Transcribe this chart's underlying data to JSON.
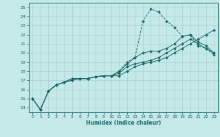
{
  "xlabel": "Humidex (Indice chaleur)",
  "xlim": [
    -0.5,
    23.5
  ],
  "ylim": [
    13.5,
    25.5
  ],
  "xticks": [
    0,
    1,
    2,
    3,
    4,
    5,
    6,
    7,
    8,
    9,
    10,
    11,
    12,
    13,
    14,
    15,
    16,
    17,
    18,
    19,
    20,
    21,
    22,
    23
  ],
  "yticks": [
    14,
    15,
    16,
    17,
    18,
    19,
    20,
    21,
    22,
    23,
    24,
    25
  ],
  "bg_color": "#c5e8e8",
  "grid_color": "#a8d0d0",
  "line_color": "#1a6868",
  "lines": [
    {
      "x": [
        0,
        1,
        2,
        3,
        4,
        5,
        6,
        7,
        8,
        9,
        10,
        11,
        12,
        13,
        14,
        15,
        16,
        17,
        18,
        19,
        20,
        21,
        22,
        23
      ],
      "y": [
        15.0,
        13.8,
        15.8,
        16.5,
        16.8,
        17.2,
        17.2,
        17.2,
        17.4,
        17.5,
        17.5,
        18.0,
        19.0,
        19.5,
        23.5,
        24.8,
        24.5,
        23.5,
        22.8,
        21.8,
        22.0,
        20.8,
        20.5,
        19.8
      ],
      "style": "--",
      "marker": "D",
      "markersize": 2.0
    },
    {
      "x": [
        0,
        1,
        2,
        3,
        4,
        5,
        6,
        7,
        8,
        9,
        10,
        11,
        12,
        13,
        14,
        15,
        16,
        17,
        18,
        19,
        20,
        21,
        22,
        23
      ],
      "y": [
        15.0,
        13.8,
        15.8,
        16.5,
        16.8,
        17.2,
        17.2,
        17.2,
        17.4,
        17.5,
        17.5,
        18.0,
        18.8,
        19.5,
        20.0,
        20.2,
        20.2,
        20.5,
        21.0,
        21.8,
        22.0,
        21.2,
        20.8,
        20.0
      ],
      "style": "-",
      "marker": "D",
      "markersize": 2.0
    },
    {
      "x": [
        0,
        1,
        2,
        3,
        4,
        5,
        6,
        7,
        8,
        9,
        10,
        11,
        12,
        13,
        14,
        15,
        16,
        17,
        18,
        19,
        20,
        21,
        22,
        23
      ],
      "y": [
        15.0,
        13.8,
        15.8,
        16.5,
        16.8,
        17.0,
        17.2,
        17.2,
        17.4,
        17.5,
        17.5,
        17.8,
        18.5,
        18.8,
        19.0,
        19.2,
        19.5,
        20.0,
        20.5,
        21.0,
        21.5,
        21.0,
        20.5,
        20.0
      ],
      "style": "-",
      "marker": "D",
      "markersize": 2.0
    },
    {
      "x": [
        0,
        1,
        2,
        3,
        4,
        5,
        6,
        7,
        8,
        9,
        10,
        11,
        12,
        13,
        14,
        15,
        16,
        17,
        18,
        19,
        20,
        21,
        22,
        23
      ],
      "y": [
        15.0,
        13.8,
        15.8,
        16.5,
        16.8,
        17.0,
        17.2,
        17.2,
        17.4,
        17.5,
        17.5,
        17.5,
        18.0,
        18.5,
        18.8,
        19.0,
        19.2,
        19.5,
        20.0,
        20.5,
        21.0,
        21.5,
        22.0,
        22.5
      ],
      "style": "-",
      "marker": "D",
      "markersize": 2.0
    }
  ]
}
